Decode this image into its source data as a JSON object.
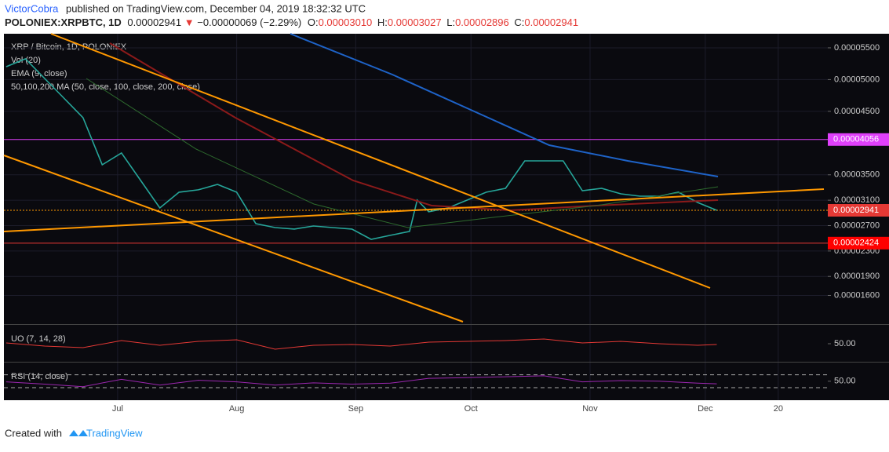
{
  "header": {
    "author": "VictorCobra",
    "published": "published on TradingView.com, December 04, 2019 18:32:32 UTC",
    "symbol": "POLONIEX:XRPBTC, 1D",
    "last": "0.00002941",
    "arrow": "▼",
    "change": "−0.00000069 (−2.29%)",
    "o_label": "O:",
    "o": "0.00003010",
    "h_label": "H:",
    "h": "0.00003027",
    "l_label": "L:",
    "l": "0.00002896",
    "c_label": "C:",
    "c": "0.00002941"
  },
  "footer": {
    "text": "Created with",
    "brand": "TradingView"
  },
  "chart_data": [
    {
      "type": "line",
      "title": "XRP / Bitcoin, 1D, POLONIEX",
      "annotations": [
        "Vol (20)",
        "EMA (9, close)",
        "50,100,200 MA (50, close, 100, close, 200, close)"
      ],
      "x": [
        153,
        158,
        163,
        168,
        173,
        178,
        183,
        188,
        193,
        198,
        203,
        208,
        213,
        218,
        223,
        228,
        233,
        238,
        243,
        248,
        253,
        258,
        260,
        263,
        268,
        273,
        278,
        283,
        288,
        293,
        298,
        303,
        308,
        313,
        318,
        323,
        328,
        333,
        338
      ],
      "series": [
        {
          "color": "#26a69a",
          "values": [
            5.203e-05,
            5.327e-05,
            5.018e-05,
            4.709e-05,
            4.4e-05,
            3.658e-05,
            3.844e-05,
            3.411e-05,
            2.978e-05,
            3.226e-05,
            3.263e-05,
            3.349e-05,
            3.226e-05,
            2.731e-05,
            2.669e-05,
            2.645e-05,
            2.694e-05,
            2.669e-05,
            2.645e-05,
            2.484e-05,
            2.546e-05,
            2.608e-05,
            3.102e-05,
            2.917e-05,
            2.978e-05,
            3.102e-05,
            3.226e-05,
            3.287e-05,
            3.72e-05,
            3.72e-05,
            3.72e-05,
            3.25e-05,
            3.287e-05,
            3.201e-05,
            3.164e-05,
            3.164e-05,
            3.226e-05,
            3.065e-05,
            2.941e-05
          ]
        }
      ],
      "xlim": [
        152.4,
        366.9
      ],
      "xticks": [
        {
          "value": 182,
          "label": "Jul"
        },
        {
          "value": 213,
          "label": "Aug"
        },
        {
          "value": 244,
          "label": "Sep"
        },
        {
          "value": 274,
          "label": "Oct"
        },
        {
          "value": 305,
          "label": "Nov"
        },
        {
          "value": 335,
          "label": "Dec"
        },
        {
          "value": 354,
          "label": "20"
        }
      ],
      "ylim": [
        1.161e-05,
        5.722e-05
      ],
      "yticks": [
        {
          "value": 5.5e-05,
          "label": "0.00005500"
        },
        {
          "value": 5e-05,
          "label": "0.00005000"
        },
        {
          "value": 4.5e-05,
          "label": "0.00004500"
        },
        {
          "value": 3.5e-05,
          "label": "0.00003500"
        },
        {
          "value": 3.1e-05,
          "label": "0.00003100"
        },
        {
          "value": 2.7e-05,
          "label": "0.00002700"
        },
        {
          "value": 2.3e-05,
          "label": "0.00002300"
        },
        {
          "value": 1.9e-05,
          "label": "0.00001900"
        },
        {
          "value": 1.6e-05,
          "label": "0.00001600"
        }
      ],
      "price_lines": [
        {
          "value": 4.056e-05,
          "label": "0.00004056",
          "color": "#e040fb",
          "tag_color": "#e040fb",
          "dashed": false
        },
        {
          "value": 2.941e-05,
          "label": "0.00002941",
          "color": "#ff9800",
          "tag_color": "#e53935",
          "dashed": true
        },
        {
          "value": 2.424e-05,
          "label": "0.00002424",
          "color": "#e53935",
          "tag_color": "#ff0000",
          "dashed": false
        }
      ],
      "grid": true
    },
    {
      "type": "line",
      "title": "UO (7, 14, 28)",
      "x": [
        153,
        163,
        173,
        183,
        193,
        203,
        213,
        223,
        233,
        243,
        253,
        263,
        273,
        283,
        293,
        303,
        313,
        323,
        333,
        338
      ],
      "series": [
        {
          "color": "#e53935",
          "values": [
            52,
            44,
            40,
            58,
            46,
            56,
            60,
            36,
            46,
            48,
            44,
            54,
            56,
            58,
            62,
            52,
            56,
            50,
            46,
            48
          ]
        }
      ],
      "xlim": [
        152.4,
        366.9
      ],
      "ylim": [
        4,
        96
      ],
      "yticks": [
        {
          "value": 50,
          "label": "50.00"
        }
      ]
    },
    {
      "type": "line",
      "title": "RSI (14, close)",
      "x": [
        153,
        163,
        173,
        183,
        193,
        203,
        213,
        223,
        233,
        243,
        253,
        263,
        273,
        283,
        293,
        303,
        313,
        323,
        333,
        338
      ],
      "series": [
        {
          "color": "#9c27b0",
          "values": [
            48,
            41,
            33,
            56,
            38,
            53,
            48,
            38,
            45,
            41,
            44,
            59,
            61,
            64,
            67,
            48,
            52,
            50,
            44,
            42
          ]
        }
      ],
      "xlim": [
        152.4,
        366.9
      ],
      "ylim": [
        -2,
        106
      ],
      "yticks": [
        {
          "value": 50,
          "label": "50.00"
        }
      ],
      "bands": [
        70,
        30
      ]
    }
  ]
}
